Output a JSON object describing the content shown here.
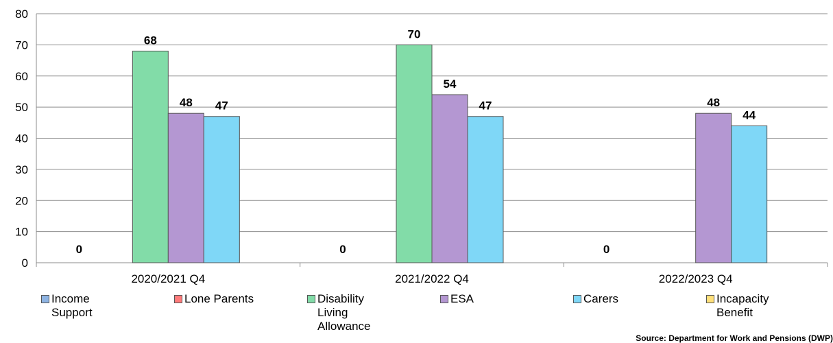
{
  "chart_data": {
    "type": "bar",
    "categories": [
      "2020/2021 Q4",
      "2021/2022 Q4",
      "2022/2023 Q4"
    ],
    "series": [
      {
        "name": "Income Support",
        "color": "#8eb4e3",
        "values": [
          0,
          0,
          0
        ]
      },
      {
        "name": "Lone Parents",
        "color": "#ff7b7b",
        "values": [
          0,
          0,
          0
        ]
      },
      {
        "name": "Disability Living Allowance",
        "color": "#82dca8",
        "values": [
          68,
          70,
          0
        ]
      },
      {
        "name": "ESA",
        "color": "#b497d2",
        "values": [
          48,
          54,
          48
        ]
      },
      {
        "name": "Carers",
        "color": "#7fd7f7",
        "values": [
          47,
          47,
          44
        ]
      },
      {
        "name": "Incapacity Benefit",
        "color": "#ffe07a",
        "values": [
          0,
          0,
          0
        ]
      }
    ],
    "data_labels": [
      [
        {
          "series": 0,
          "text": "0"
        },
        {
          "series": 2,
          "text": "68"
        },
        {
          "series": 3,
          "text": "48"
        },
        {
          "series": 4,
          "text": "47"
        }
      ],
      [
        {
          "series": 0,
          "text": "0"
        },
        {
          "series": 2,
          "text": "70"
        },
        {
          "series": 3,
          "text": "54"
        },
        {
          "series": 4,
          "text": "47"
        }
      ],
      [
        {
          "series": 0,
          "text": "0"
        },
        {
          "series": 3,
          "text": "48"
        },
        {
          "series": 4,
          "text": "44"
        }
      ]
    ],
    "ylim": [
      0,
      80
    ],
    "yticks": [
      "0",
      "10",
      "20",
      "30",
      "40",
      "50",
      "60",
      "70",
      "80"
    ],
    "grid": true,
    "legend_position": "bottom"
  },
  "legend": [
    {
      "lines": [
        "Income",
        "Support"
      ]
    },
    {
      "lines": [
        "Lone Parents"
      ]
    },
    {
      "lines": [
        "Disability",
        "Living",
        "Allowance"
      ]
    },
    {
      "lines": [
        "ESA"
      ]
    },
    {
      "lines": [
        "Carers"
      ]
    },
    {
      "lines": [
        "Incapacity",
        "Benefit"
      ]
    }
  ],
  "source": "Source: Department for Work and Pensions (DWP)"
}
